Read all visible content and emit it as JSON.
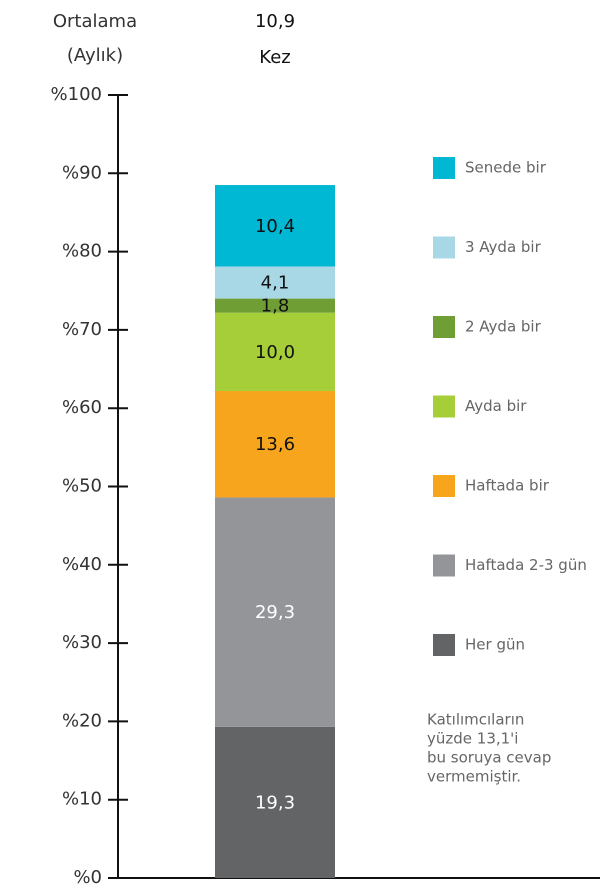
{
  "chart_data": {
    "type": "stacked_bar",
    "categories": [
      null
    ],
    "axis_title": [
      "Ortalama",
      "(Aylık)"
    ],
    "bar_annotation": [
      "10,9",
      "Kez"
    ],
    "note": [
      "Katılımcıların",
      "yüzde 13,1'i",
      "bu soruya cevap",
      "vermemiştir."
    ],
    "ylim": [
      0,
      100
    ],
    "yticks": [
      {
        "value": 0,
        "label": "%0"
      },
      {
        "value": 10,
        "label": "%10"
      },
      {
        "value": 20,
        "label": "%20"
      },
      {
        "value": 30,
        "label": "%30"
      },
      {
        "value": 40,
        "label": "%40"
      },
      {
        "value": 50,
        "label": "%50"
      },
      {
        "value": 60,
        "label": "%60"
      },
      {
        "value": 70,
        "label": "%70"
      },
      {
        "value": 80,
        "label": "%80"
      },
      {
        "value": 90,
        "label": "%90"
      },
      {
        "value": 100,
        "label": "%100"
      }
    ],
    "series": [
      {
        "name": "Her gün",
        "color": "#636466",
        "label_color": "#ffffff",
        "values": [
          19.3
        ],
        "value_labels": [
          "19,3"
        ]
      },
      {
        "name": "Haftada 2-3 gün",
        "color": "#939598",
        "label_color": "#ffffff",
        "values": [
          29.3
        ],
        "value_labels": [
          "29,3"
        ]
      },
      {
        "name": "Haftada bir",
        "color": "#f7a51c",
        "label_color": "#111111",
        "values": [
          13.6
        ],
        "value_labels": [
          "13,6"
        ]
      },
      {
        "name": "Ayda bir",
        "color": "#a6ce39",
        "label_color": "#111111",
        "values": [
          10.0
        ],
        "value_labels": [
          "10,0"
        ]
      },
      {
        "name": "2 Ayda bir",
        "color": "#6f9e35",
        "label_color": "#111111",
        "values": [
          1.8
        ],
        "value_labels": [
          "1,8"
        ]
      },
      {
        "name": "3 Ayda bir",
        "color": "#a8d8e6",
        "label_color": "#111111",
        "values": [
          4.1
        ],
        "value_labels": [
          "4,1"
        ]
      },
      {
        "name": "Senede bir",
        "color": "#00b8d4",
        "label_color": "#111111",
        "values": [
          10.4
        ],
        "value_labels": [
          "10,4"
        ]
      }
    ]
  }
}
